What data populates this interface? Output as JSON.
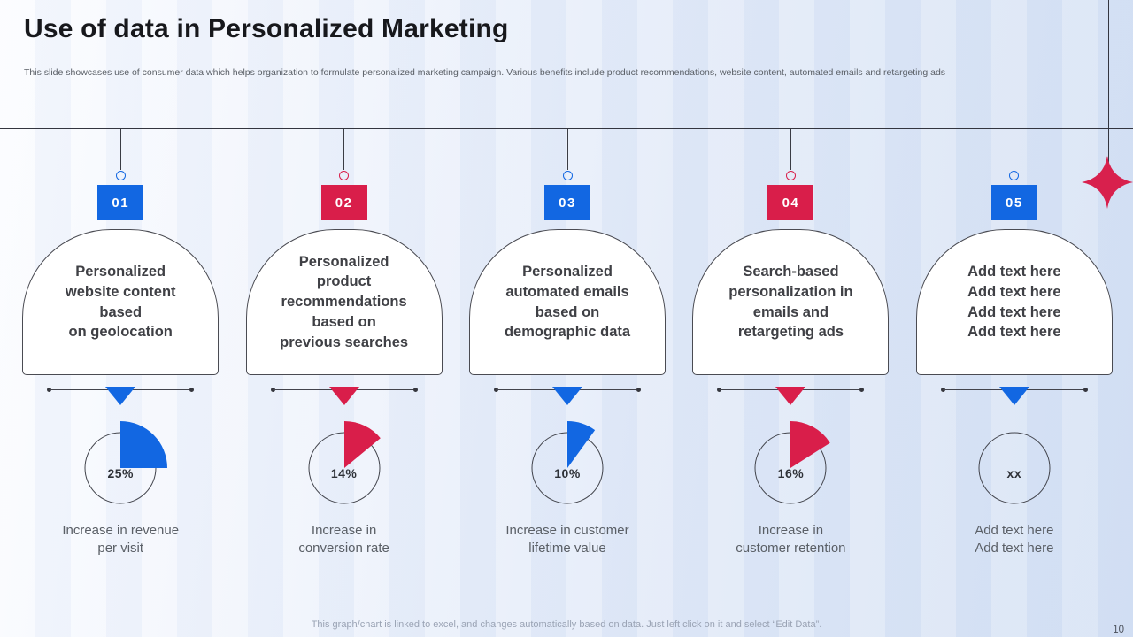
{
  "slide": {
    "title": "Use of data in Personalized Marketing",
    "subtitle": "This slide showcases use of consumer data which helps organization to formulate personalized marketing campaign.  Various benefits include product recommendations,  website content, automated emails and retargeting ads"
  },
  "colors": {
    "blue_accent": "#1267E2",
    "red_accent": "#D91E4A",
    "line_dark": "#33353F",
    "star_red": "#D8204D",
    "card_background": "#FFFFFF",
    "text_gray": "#5A5F66"
  },
  "columns": [
    {
      "number": "01",
      "color": "#1267E2",
      "title": "Personalized\nwebsite content\nbased\non geolocation",
      "pct": 25,
      "value_label": "25%",
      "description": "Increase in revenue\nper visit"
    },
    {
      "number": "02",
      "color": "#D91E4A",
      "title": "Personalized\nproduct\nrecommendations\nbased on\nprevious searches",
      "pct": 14,
      "value_label": "14%",
      "description": "Increase in\nconversion rate"
    },
    {
      "number": "03",
      "color": "#1267E2",
      "title": "Personalized\nautomated emails\nbased on\ndemographic data",
      "pct": 10,
      "value_label": "10%",
      "description": "Increase in customer\nlifetime value"
    },
    {
      "number": "04",
      "color": "#D91E4A",
      "title": "Search-based\npersonalization in\nemails and\nretargeting ads",
      "pct": 16,
      "value_label": "16%",
      "description": "Increase in\ncustomer retention"
    },
    {
      "number": "05",
      "color": "#1267E2",
      "title": "Add text here\nAdd text here\nAdd text here\nAdd text here",
      "pct": null,
      "value_label": "xx",
      "description": "Add text here\nAdd text here"
    }
  ],
  "chart_data": {
    "type": "pie",
    "series": [
      {
        "label": "Increase in revenue per visit",
        "pct": 25
      },
      {
        "label": "Increase in conversion rate",
        "pct": 14
      },
      {
        "label": "Increase in customer lifetime value",
        "pct": 10
      },
      {
        "label": "Increase in customer retention",
        "pct": 16
      },
      {
        "label": "Add text here Add text here",
        "pct": null
      }
    ]
  },
  "footer": {
    "note": "This graph/chart is linked to excel,  and changes automatically based on data. Just left click on it and select “Edit Data”.",
    "page_number": "10"
  }
}
